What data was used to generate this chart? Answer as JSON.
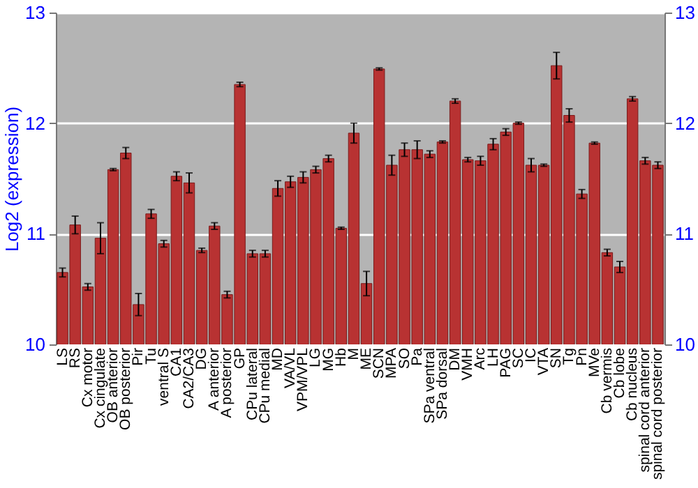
{
  "chart_data": {
    "type": "bar",
    "ylabel": "Log2 (expression)",
    "categories": [
      "LS",
      "RS",
      "Cx motor",
      "Cx cingulate",
      "OB anterior",
      "OB posterior",
      "Pir",
      "Tu",
      "ventral S",
      "CA1",
      "CA2/CA3",
      "DG",
      "A anterior",
      "A posterior",
      "GP",
      "CPu lateral",
      "CPu medial",
      "MD",
      "VA/VL",
      "VPM/VPL",
      "LG",
      "MG",
      "Hb",
      "M",
      "ME",
      "SCN",
      "MPA",
      "SO",
      "Pa",
      "SPa ventral",
      "SPa dorsal",
      "DM",
      "VMH",
      "Arc",
      "LH",
      "PAG",
      "SC",
      "IC",
      "VTA",
      "SN",
      "Tg",
      "Pn",
      "MVe",
      "Cb vermis",
      "Cb lobe",
      "Cb nucleus",
      "spinal cord anterior",
      "spinal cord posterior"
    ],
    "values": [
      10.65,
      11.08,
      10.52,
      10.96,
      11.58,
      11.73,
      10.36,
      11.18,
      10.91,
      11.52,
      11.46,
      10.85,
      11.07,
      10.45,
      12.35,
      10.82,
      10.82,
      11.41,
      11.47,
      11.51,
      11.58,
      11.68,
      11.05,
      11.91,
      10.55,
      12.49,
      11.62,
      11.76,
      11.76,
      11.72,
      11.83,
      12.2,
      11.67,
      11.66,
      11.81,
      11.92,
      12.0,
      11.62,
      11.62,
      12.52,
      12.07,
      11.36,
      11.82,
      10.83,
      10.7,
      12.22,
      11.66,
      11.62
    ],
    "errors": [
      0.04,
      0.08,
      0.03,
      0.14,
      0.01,
      0.05,
      0.1,
      0.04,
      0.03,
      0.04,
      0.09,
      0.02,
      0.03,
      0.03,
      0.02,
      0.03,
      0.03,
      0.07,
      0.05,
      0.05,
      0.03,
      0.03,
      0.01,
      0.09,
      0.11,
      0.01,
      0.09,
      0.06,
      0.08,
      0.03,
      0.01,
      0.02,
      0.02,
      0.04,
      0.05,
      0.03,
      0.01,
      0.06,
      0.01,
      0.12,
      0.06,
      0.04,
      0.01,
      0.03,
      0.05,
      0.02,
      0.03,
      0.03
    ],
    "color": "#b83232",
    "ylim": [
      10,
      13
    ],
    "yticks": [
      10,
      11,
      12,
      13
    ],
    "y2lim": [
      10,
      13
    ],
    "y2ticks": [
      10,
      11,
      12,
      13
    ],
    "grid": "y"
  }
}
